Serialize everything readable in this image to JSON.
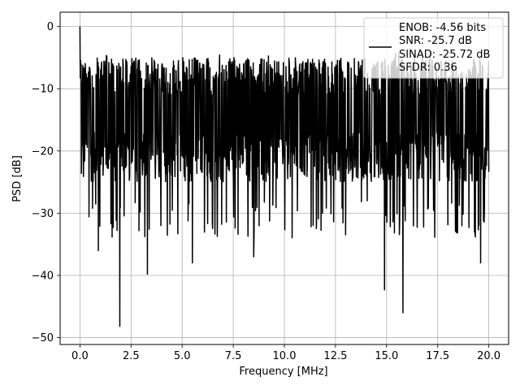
{
  "chart_data": {
    "type": "line",
    "title": "",
    "xlabel": "Frequency [MHz]",
    "ylabel": "PSD [dB]",
    "xlim": [
      -0.97,
      20.97
    ],
    "ylim": [
      -51.1,
      2.3
    ],
    "xticks": [
      0.0,
      2.5,
      5.0,
      7.5,
      10.0,
      12.5,
      15.0,
      17.5,
      20.0
    ],
    "xtick_labels": [
      "0.0",
      "2.5",
      "5.0",
      "7.5",
      "10.0",
      "12.5",
      "15.0",
      "17.5",
      "20.0"
    ],
    "yticks": [
      0,
      -10,
      -20,
      -30,
      -40,
      -50
    ],
    "ytick_labels": [
      "0",
      "−10",
      "−20",
      "−30",
      "−40",
      "−50"
    ],
    "grid": true,
    "legend_position": "top-right",
    "series": [
      {
        "name": "ENOB: -4.56 bits\nSNR: -25.7 dB\nSINAD: -25.72 dB\nSFDR: 0.36",
        "color": "#000000",
        "x_range": [
          0.0,
          20.0
        ],
        "level_db": [
          -25,
          -5
        ],
        "peak": {
          "x": 0.0,
          "y": 0.0
        },
        "notable_dips": [
          {
            "x": 1.95,
            "y": -48.2
          },
          {
            "x": 15.8,
            "y": -46.0
          },
          {
            "x": 14.9,
            "y": -42.3
          },
          {
            "x": 3.3,
            "y": -39.8
          },
          {
            "x": 0.9,
            "y": -36.0
          },
          {
            "x": 5.5,
            "y": -38.0
          },
          {
            "x": 8.5,
            "y": -37.0
          },
          {
            "x": 19.6,
            "y": -38.0
          }
        ]
      }
    ],
    "legend_lines": [
      "ENOB: -4.56 bits",
      "SNR: -25.7 dB",
      "SINAD: -25.72 dB",
      "SFDR: 0.36"
    ]
  }
}
